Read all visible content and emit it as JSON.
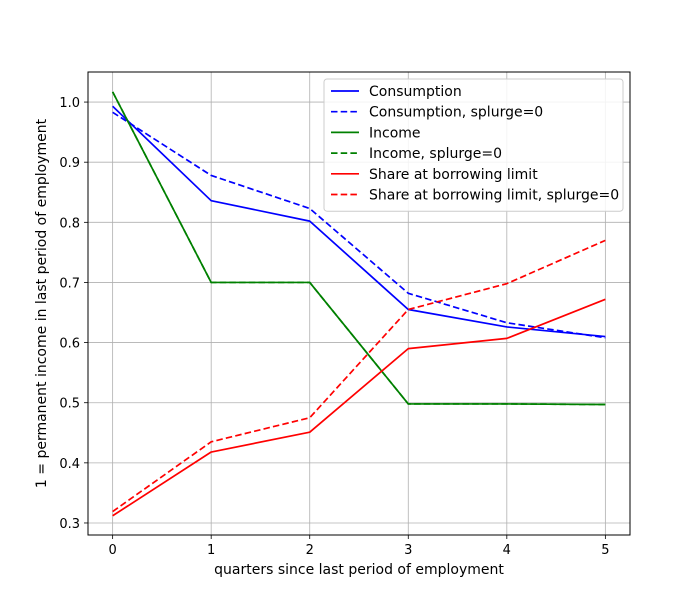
{
  "chart_data": {
    "type": "line",
    "title": "",
    "xlabel": "quarters since last period of employment",
    "ylabel": "1 = permanent income in last period of employment",
    "x": [
      0,
      1,
      2,
      3,
      4,
      5
    ],
    "xticks": [
      "0",
      "1",
      "2",
      "3",
      "4",
      "5"
    ],
    "yticks": [
      "0.3",
      "0.4",
      "0.5",
      "0.6",
      "0.7",
      "0.8",
      "0.9",
      "1.0"
    ],
    "xlim": [
      -0.25,
      5.25
    ],
    "ylim": [
      0.28,
      1.05
    ],
    "grid": true,
    "legend_position": "top-right",
    "series": [
      {
        "name": "Consumption",
        "color": "#0000ff",
        "dash": "solid",
        "values": [
          0.993,
          0.836,
          0.802,
          0.655,
          0.626,
          0.61
        ]
      },
      {
        "name": "Consumption, splurge=0",
        "color": "#0000ff",
        "dash": "dashed",
        "values": [
          0.983,
          0.878,
          0.823,
          0.682,
          0.633,
          0.608
        ]
      },
      {
        "name": "Income",
        "color": "#008000",
        "dash": "solid",
        "values": [
          1.017,
          0.7,
          0.7,
          0.498,
          0.498,
          0.497
        ]
      },
      {
        "name": "Income, splurge=0",
        "color": "#008000",
        "dash": "dashed",
        "values": [
          1.017,
          0.7,
          0.7,
          0.498,
          0.498,
          0.497
        ]
      },
      {
        "name": "Share at borrowing limit",
        "color": "#ff0000",
        "dash": "solid",
        "values": [
          0.312,
          0.418,
          0.451,
          0.59,
          0.607,
          0.672
        ]
      },
      {
        "name": "Share at borrowing limit, splurge=0",
        "color": "#ff0000",
        "dash": "dashed",
        "values": [
          0.319,
          0.435,
          0.475,
          0.655,
          0.698,
          0.77
        ]
      }
    ]
  }
}
